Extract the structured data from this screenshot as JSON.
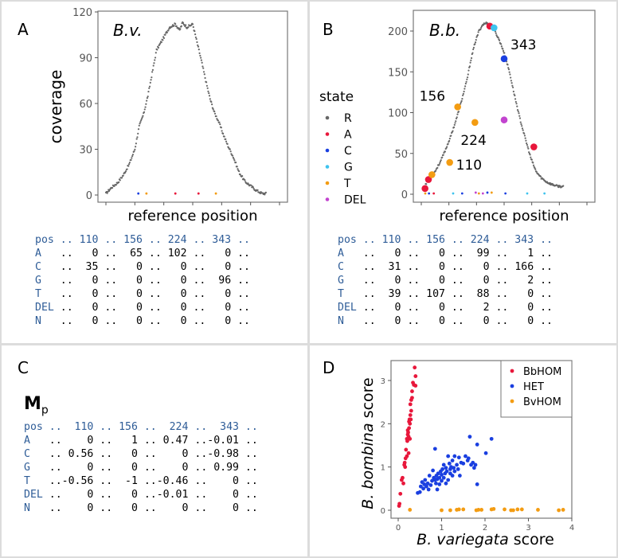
{
  "panels": {
    "A": {
      "letter": "A"
    },
    "B": {
      "letter": "B"
    },
    "C": {
      "letter": "C",
      "matrix_label": "M",
      "matrix_subscript": "p"
    },
    "D": {
      "letter": "D"
    }
  },
  "colors": {
    "R": "#666666",
    "A": "#e8173b",
    "C": "#1a3fe0",
    "G": "#3ec3ee",
    "T": "#f39c12",
    "DEL": "#c244cf",
    "BbHOM": "#e8173b",
    "HET": "#1a3fe0",
    "BvHOM": "#f39c12"
  },
  "chart_data": [
    {
      "id": "A",
      "type": "scatter",
      "title": "B.v.",
      "xlabel": "reference position",
      "ylabel": "coverage",
      "ylim": [
        0,
        120
      ],
      "yticks": [
        0,
        30,
        60,
        90,
        120
      ],
      "xlim": [
        0,
        600
      ],
      "coverage_profile": [
        [
          0,
          1
        ],
        [
          20,
          5
        ],
        [
          40,
          8
        ],
        [
          60,
          13
        ],
        [
          80,
          20
        ],
        [
          100,
          30
        ],
        [
          115,
          45
        ],
        [
          130,
          53
        ],
        [
          145,
          65
        ],
        [
          160,
          80
        ],
        [
          175,
          95
        ],
        [
          190,
          100
        ],
        [
          205,
          105
        ],
        [
          220,
          110
        ],
        [
          240,
          112
        ],
        [
          255,
          108
        ],
        [
          265,
          113
        ],
        [
          280,
          110
        ],
        [
          300,
          112
        ],
        [
          315,
          100
        ],
        [
          330,
          88
        ],
        [
          345,
          75
        ],
        [
          360,
          63
        ],
        [
          375,
          54
        ],
        [
          390,
          48
        ],
        [
          405,
          40
        ],
        [
          420,
          33
        ],
        [
          440,
          25
        ],
        [
          460,
          15
        ],
        [
          480,
          9
        ],
        [
          500,
          6
        ],
        [
          520,
          3
        ],
        [
          540,
          1
        ],
        [
          555,
          1
        ]
      ],
      "variant_points": [
        {
          "x": 112,
          "y": 1,
          "state": "C"
        },
        {
          "x": 140,
          "y": 1,
          "state": "T"
        },
        {
          "x": 240,
          "y": 1,
          "state": "A"
        },
        {
          "x": 320,
          "y": 1,
          "state": "A"
        },
        {
          "x": 380,
          "y": 1,
          "state": "T"
        }
      ]
    },
    {
      "id": "B",
      "type": "scatter",
      "title": "B.b.",
      "xlabel": "reference position",
      "ylabel": "",
      "ylim": [
        0,
        200
      ],
      "yticks": [
        0,
        50,
        100,
        150,
        200
      ],
      "xlim": [
        0,
        600
      ],
      "legend": {
        "title": "state",
        "position": "left",
        "entries": [
          "R",
          "A",
          "C",
          "G",
          "T",
          "DEL"
        ]
      },
      "coverage_profile": [
        [
          0,
          10
        ],
        [
          20,
          20
        ],
        [
          40,
          28
        ],
        [
          60,
          40
        ],
        [
          80,
          55
        ],
        [
          100,
          72
        ],
        [
          120,
          92
        ],
        [
          140,
          115
        ],
        [
          160,
          140
        ],
        [
          175,
          165
        ],
        [
          190,
          185
        ],
        [
          205,
          200
        ],
        [
          220,
          208
        ],
        [
          235,
          210
        ],
        [
          250,
          207
        ],
        [
          265,
          200
        ],
        [
          280,
          190
        ],
        [
          295,
          178
        ],
        [
          305,
          168
        ],
        [
          320,
          150
        ],
        [
          340,
          120
        ],
        [
          360,
          92
        ],
        [
          380,
          68
        ],
        [
          400,
          45
        ],
        [
          420,
          28
        ],
        [
          440,
          20
        ],
        [
          460,
          15
        ],
        [
          480,
          12
        ],
        [
          500,
          10
        ],
        [
          525,
          9
        ]
      ],
      "variant_points": [
        {
          "x": 2,
          "y": 7,
          "state": "A",
          "size": "large"
        },
        {
          "x": 15,
          "y": 18,
          "state": "A",
          "size": "large"
        },
        {
          "x": 28,
          "y": 24,
          "state": "T",
          "size": "large"
        },
        {
          "x": 95,
          "y": 39,
          "state": "T",
          "size": "large",
          "label": "110"
        },
        {
          "x": 125,
          "y": 107,
          "state": "T",
          "size": "large",
          "label": "156"
        },
        {
          "x": 190,
          "y": 88,
          "state": "T",
          "size": "large",
          "label": "224"
        },
        {
          "x": 246,
          "y": 206,
          "state": "A",
          "size": "large"
        },
        {
          "x": 262,
          "y": 204,
          "state": "G",
          "size": "large"
        },
        {
          "x": 300,
          "y": 166,
          "state": "C",
          "size": "large",
          "label": "343"
        },
        {
          "x": 300,
          "y": 91,
          "state": "DEL",
          "size": "large"
        },
        {
          "x": 412,
          "y": 58,
          "state": "A",
          "size": "large"
        },
        {
          "x": 3,
          "y": 1,
          "state": "T"
        },
        {
          "x": 17,
          "y": 1,
          "state": "C"
        },
        {
          "x": 35,
          "y": 1,
          "state": "A"
        },
        {
          "x": 108,
          "y": 1,
          "state": "G"
        },
        {
          "x": 142,
          "y": 1,
          "state": "C"
        },
        {
          "x": 193,
          "y": 2,
          "state": "DEL"
        },
        {
          "x": 205,
          "y": 1,
          "state": "T"
        },
        {
          "x": 220,
          "y": 1,
          "state": "DEL"
        },
        {
          "x": 237,
          "y": 2,
          "state": "C"
        },
        {
          "x": 253,
          "y": 2,
          "state": "T"
        },
        {
          "x": 305,
          "y": 1,
          "state": "C"
        },
        {
          "x": 387,
          "y": 1,
          "state": "G"
        },
        {
          "x": 452,
          "y": 1,
          "state": "G"
        }
      ]
    },
    {
      "id": "D",
      "type": "scatter",
      "xlabel_italic": "B. variegata",
      "xlabel_rest": " score",
      "ylabel_italic": "B. bombina",
      "ylabel_rest": " score",
      "xlim": [
        -0.15,
        4
      ],
      "ylim": [
        -0.1,
        3.45
      ],
      "xticks": [
        0,
        1,
        2,
        3,
        4
      ],
      "yticks": [
        0,
        1,
        2,
        3
      ],
      "legend": {
        "position": "top-right",
        "entries": [
          "BbHOM",
          "HET",
          "BvHOM"
        ]
      },
      "series": [
        {
          "name": "BbHOM",
          "points": [
            [
              0.02,
              0.1
            ],
            [
              0.03,
              0.15
            ],
            [
              0.05,
              0.38
            ],
            [
              0.08,
              0.7
            ],
            [
              0.1,
              0.75
            ],
            [
              0.12,
              0.62
            ],
            [
              0.14,
              1.05
            ],
            [
              0.15,
              1.1
            ],
            [
              0.16,
              1.0
            ],
            [
              0.17,
              1.2
            ],
            [
              0.18,
              1.4
            ],
            [
              0.2,
              1.25
            ],
            [
              0.2,
              1.65
            ],
            [
              0.21,
              1.6
            ],
            [
              0.22,
              1.75
            ],
            [
              0.22,
              1.85
            ],
            [
              0.23,
              1.8
            ],
            [
              0.24,
              1.32
            ],
            [
              0.24,
              1.7
            ],
            [
              0.25,
              1.9
            ],
            [
              0.25,
              2.05
            ],
            [
              0.26,
              2.1
            ],
            [
              0.27,
              1.65
            ],
            [
              0.27,
              2.0
            ],
            [
              0.28,
              2.2
            ],
            [
              0.28,
              2.45
            ],
            [
              0.29,
              2.1
            ],
            [
              0.3,
              2.3
            ],
            [
              0.3,
              2.55
            ],
            [
              0.32,
              2.6
            ],
            [
              0.32,
              2.75
            ],
            [
              0.34,
              2.95
            ],
            [
              0.36,
              2.9
            ],
            [
              0.38,
              3.3
            ],
            [
              0.4,
              3.1
            ],
            [
              0.4,
              2.88
            ]
          ]
        },
        {
          "name": "HET",
          "points": [
            [
              0.45,
              0.4
            ],
            [
              0.5,
              0.42
            ],
            [
              0.52,
              0.55
            ],
            [
              0.55,
              0.65
            ],
            [
              0.58,
              0.5
            ],
            [
              0.6,
              0.6
            ],
            [
              0.62,
              0.7
            ],
            [
              0.65,
              0.55
            ],
            [
              0.68,
              0.62
            ],
            [
              0.7,
              0.48
            ],
            [
              0.72,
              0.8
            ],
            [
              0.75,
              0.58
            ],
            [
              0.78,
              0.68
            ],
            [
              0.8,
              0.92
            ],
            [
              0.82,
              0.75
            ],
            [
              0.85,
              0.7
            ],
            [
              0.85,
              1.42
            ],
            [
              0.87,
              0.62
            ],
            [
              0.88,
              0.8
            ],
            [
              0.9,
              0.72
            ],
            [
              0.9,
              0.48
            ],
            [
              0.92,
              0.85
            ],
            [
              0.95,
              0.75
            ],
            [
              0.95,
              0.6
            ],
            [
              0.98,
              0.9
            ],
            [
              1.0,
              0.68
            ],
            [
              1.0,
              0.82
            ],
            [
              1.02,
              0.95
            ],
            [
              1.05,
              1.05
            ],
            [
              1.05,
              0.75
            ],
            [
              1.08,
              0.85
            ],
            [
              1.1,
              0.62
            ],
            [
              1.1,
              0.98
            ],
            [
              1.12,
              0.9
            ],
            [
              1.15,
              1.25
            ],
            [
              1.15,
              0.7
            ],
            [
              1.18,
              1.08
            ],
            [
              1.2,
              0.85
            ],
            [
              1.2,
              0.95
            ],
            [
              1.22,
              1.0
            ],
            [
              1.25,
              1.15
            ],
            [
              1.25,
              0.8
            ],
            [
              1.28,
              0.98
            ],
            [
              1.3,
              1.25
            ],
            [
              1.3,
              0.9
            ],
            [
              1.35,
              1.05
            ],
            [
              1.38,
              0.95
            ],
            [
              1.4,
              1.22
            ],
            [
              1.42,
              0.8
            ],
            [
              1.45,
              1.1
            ],
            [
              1.5,
              1.08
            ],
            [
              1.55,
              1.25
            ],
            [
              1.6,
              1.15
            ],
            [
              1.62,
              1.2
            ],
            [
              1.65,
              1.7
            ],
            [
              1.68,
              1.05
            ],
            [
              1.72,
              1.1
            ],
            [
              1.75,
              0.98
            ],
            [
              1.78,
              1.05
            ],
            [
              1.82,
              1.52
            ],
            [
              1.82,
              0.6
            ],
            [
              2.02,
              1.32
            ],
            [
              2.15,
              1.65
            ]
          ]
        },
        {
          "name": "BvHOM",
          "points": [
            [
              0.27,
              0.01
            ],
            [
              1.0,
              0.0
            ],
            [
              1.2,
              0.0
            ],
            [
              1.35,
              0.01
            ],
            [
              1.4,
              0.02
            ],
            [
              1.5,
              0.02
            ],
            [
              1.8,
              0.0
            ],
            [
              1.85,
              0.01
            ],
            [
              1.92,
              0.01
            ],
            [
              2.15,
              0.02
            ],
            [
              2.2,
              0.03
            ],
            [
              2.45,
              0.02
            ],
            [
              2.6,
              0.0
            ],
            [
              2.65,
              0.0
            ],
            [
              2.75,
              0.02
            ],
            [
              2.85,
              0.02
            ],
            [
              3.22,
              0.01
            ],
            [
              3.7,
              0.0
            ],
            [
              3.8,
              0.01
            ]
          ]
        }
      ]
    }
  ],
  "tables": {
    "A": {
      "header": [
        "pos",
        "110",
        "156",
        "224",
        "343"
      ],
      "rows": [
        {
          "label": "A",
          "values": [
            "0",
            "65",
            "102",
            "0"
          ]
        },
        {
          "label": "C",
          "values": [
            "35",
            "0",
            "0",
            "0"
          ]
        },
        {
          "label": "G",
          "values": [
            "0",
            "0",
            "0",
            "96"
          ]
        },
        {
          "label": "T",
          "values": [
            "0",
            "0",
            "0",
            "0"
          ]
        },
        {
          "label": "DEL",
          "values": [
            "0",
            "0",
            "0",
            "0"
          ]
        },
        {
          "label": "N",
          "values": [
            "0",
            "0",
            "0",
            "0"
          ]
        }
      ]
    },
    "B": {
      "header": [
        "pos",
        "110",
        "156",
        "224",
        "343"
      ],
      "rows": [
        {
          "label": "A",
          "values": [
            "0",
            "0",
            "99",
            "1"
          ]
        },
        {
          "label": "C",
          "values": [
            "31",
            "0",
            "0",
            "166"
          ]
        },
        {
          "label": "G",
          "values": [
            "0",
            "0",
            "0",
            "2"
          ]
        },
        {
          "label": "T",
          "values": [
            "39",
            "107",
            "88",
            "0"
          ]
        },
        {
          "label": "DEL",
          "values": [
            "0",
            "0",
            "2",
            "0"
          ]
        },
        {
          "label": "N",
          "values": [
            "0",
            "0",
            "0",
            "0"
          ]
        }
      ]
    },
    "C": {
      "header": [
        "pos",
        "110",
        "156",
        "224",
        "343"
      ],
      "rows": [
        {
          "label": "A",
          "values": [
            "0",
            "1",
            "0.47",
            "-0.01"
          ]
        },
        {
          "label": "C",
          "values": [
            "0.56",
            "0",
            "0",
            "-0.98"
          ]
        },
        {
          "label": "G",
          "values": [
            "0",
            "0",
            "0",
            "0.99"
          ]
        },
        {
          "label": "T",
          "values": [
            "-0.56",
            "-1",
            "-0.46",
            "0"
          ]
        },
        {
          "label": "DEL",
          "values": [
            "0",
            "0",
            "-0.01",
            "0"
          ]
        },
        {
          "label": "N",
          "values": [
            "0",
            "0",
            "0",
            "0"
          ]
        }
      ]
    }
  },
  "separator": ".."
}
